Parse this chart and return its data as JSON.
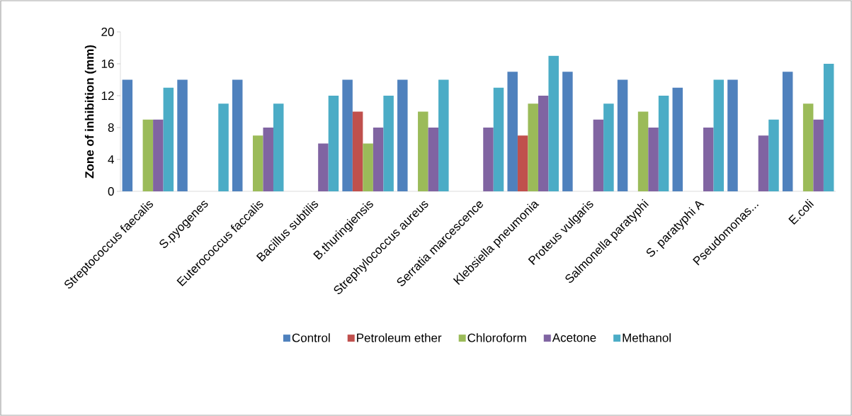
{
  "chart_data": {
    "type": "bar",
    "ylabel": "Zone of inhibition (mm)",
    "categories": [
      "Streptococcus faecalis",
      "S.pyogenes",
      "Euterococcus faccalis",
      "Bacillus subtilis",
      "B.thuringiensis",
      "Strephylococcus aureus",
      "Serratia marcescence",
      "Klebsiella pneumonia",
      "Proteus vulgaris",
      "Salmonella paratyphi",
      "S. paratyphi A",
      "Pseudomonas...",
      "E.coli"
    ],
    "series": [
      {
        "name": "Control",
        "color": "#4f81bd",
        "values": [
          14,
          14,
          14,
          0,
          14,
          14,
          0,
          15,
          15,
          14,
          13,
          14,
          15
        ]
      },
      {
        "name": "Petroleum ether",
        "color": "#c0504d",
        "values": [
          0,
          0,
          0,
          0,
          10,
          0,
          0,
          7,
          0,
          0,
          0,
          0,
          0
        ]
      },
      {
        "name": "Chloroform",
        "color": "#9bbb59",
        "values": [
          9,
          0,
          7,
          0,
          6,
          10,
          0,
          11,
          0,
          10,
          0,
          0,
          11
        ]
      },
      {
        "name": "Acetone",
        "color": "#8064a2",
        "values": [
          9,
          0,
          8,
          6,
          8,
          8,
          8,
          12,
          9,
          8,
          8,
          7,
          9
        ]
      },
      {
        "name": "Methanol",
        "color": "#4bacc6",
        "values": [
          13,
          11,
          11,
          12,
          12,
          14,
          13,
          17,
          11,
          12,
          14,
          9,
          16
        ]
      }
    ],
    "ylim": [
      0,
      20
    ],
    "yticks": [
      0,
      4,
      8,
      12,
      16,
      20
    ],
    "grid": false,
    "legend": "bottom"
  }
}
